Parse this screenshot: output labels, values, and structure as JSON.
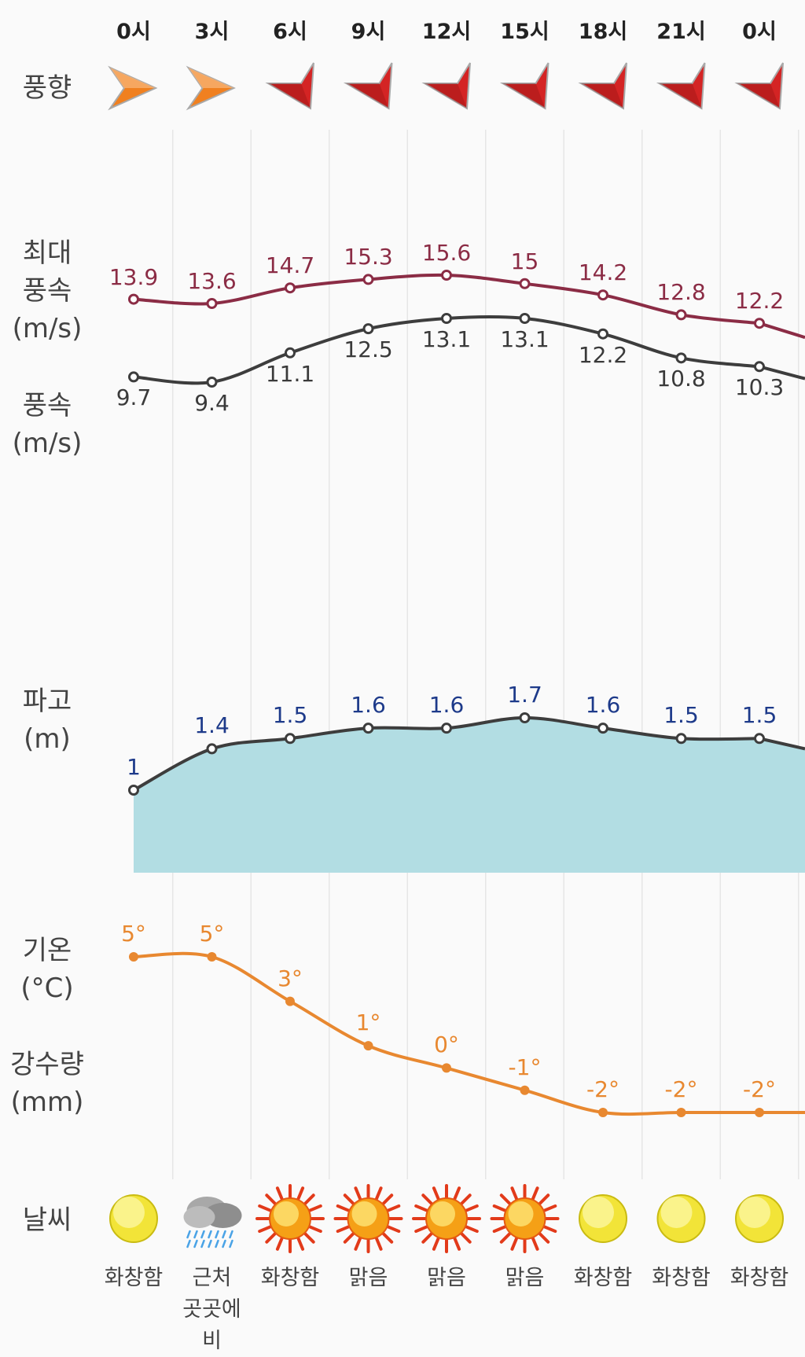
{
  "labels": {
    "wind_dir": "풍향",
    "gust": [
      "최대",
      "풍속",
      "(m/s)"
    ],
    "wind": [
      "풍속",
      "(m/s)"
    ],
    "wave": [
      "파고",
      "(m)"
    ],
    "temp": [
      "기온",
      "(°C)"
    ],
    "rain": [
      "강수량",
      "(mm)"
    ],
    "weather": "날씨"
  },
  "times": [
    "0시",
    "3시",
    "6시",
    "9시",
    "12시",
    "15시",
    "18시",
    "21시",
    "0시"
  ],
  "wind_direction_icons": [
    "arrow-east-icon",
    "arrow-east-icon",
    "arrow-southwest-icon",
    "arrow-southwest-icon",
    "arrow-southwest-icon",
    "arrow-southwest-icon",
    "arrow-southwest-icon",
    "arrow-southwest-icon",
    "arrow-southwest-icon"
  ],
  "colors": {
    "gust": "#8b2c45",
    "wind": "#3d3d3d",
    "wave_fill": "#b2dde3",
    "wave_label": "#1d3a8a",
    "temp": "#e88830",
    "arrow_orange": "#f08020",
    "arrow_red": "#d42424",
    "grid": "#e6e6e6"
  },
  "chart_data": [
    {
      "type": "line",
      "series_key": "gust",
      "categories": [
        "0시",
        "3시",
        "6시",
        "9시",
        "12시",
        "15시",
        "18시",
        "21시",
        "0시"
      ],
      "values": [
        13.9,
        13.6,
        14.7,
        15.3,
        15.6,
        15,
        14.2,
        12.8,
        12.2
      ],
      "value_labels": [
        "13.9",
        "13.6",
        "14.7",
        "15.3",
        "15.6",
        "15",
        "14.2",
        "12.8",
        "12.2"
      ]
    },
    {
      "type": "line",
      "series_key": "wind",
      "categories": [
        "0시",
        "3시",
        "6시",
        "9시",
        "12시",
        "15시",
        "18시",
        "21시",
        "0시"
      ],
      "values": [
        9.7,
        9.4,
        11.1,
        12.5,
        13.1,
        13.1,
        12.2,
        10.8,
        10.3
      ],
      "value_labels": [
        "9.7",
        "9.4",
        "11.1",
        "12.5",
        "13.1",
        "13.1",
        "12.2",
        "10.8",
        "10.3"
      ]
    },
    {
      "type": "area",
      "series_key": "wave",
      "categories": [
        "0시",
        "3시",
        "6시",
        "9시",
        "12시",
        "15시",
        "18시",
        "21시",
        "0시"
      ],
      "values": [
        1,
        1.4,
        1.5,
        1.6,
        1.6,
        1.7,
        1.6,
        1.5,
        1.5
      ],
      "value_labels": [
        "1",
        "1.4",
        "1.5",
        "1.6",
        "1.6",
        "1.7",
        "1.6",
        "1.5",
        "1.5"
      ]
    },
    {
      "type": "line",
      "series_key": "temp",
      "categories": [
        "0시",
        "3시",
        "6시",
        "9시",
        "12시",
        "15시",
        "18시",
        "21시",
        "0시"
      ],
      "values": [
        5,
        5,
        3,
        1,
        0,
        -1,
        -2,
        -2,
        -2
      ],
      "value_labels": [
        "5°",
        "5°",
        "3°",
        "1°",
        "0°",
        "-1°",
        "-2°",
        "-2°",
        "-2°"
      ]
    }
  ],
  "weather": [
    {
      "icon": "moon-icon",
      "text": [
        "화창함"
      ]
    },
    {
      "icon": "rain-cloud-icon",
      "text": [
        "근처",
        "곳곳에",
        "비"
      ]
    },
    {
      "icon": "sun-icon",
      "text": [
        "화창함"
      ]
    },
    {
      "icon": "sun-icon",
      "text": [
        "맑음"
      ]
    },
    {
      "icon": "sun-icon",
      "text": [
        "맑음"
      ]
    },
    {
      "icon": "sun-icon",
      "text": [
        "맑음"
      ]
    },
    {
      "icon": "moon-icon",
      "text": [
        "화창함"
      ]
    },
    {
      "icon": "moon-icon",
      "text": [
        "화창함"
      ]
    },
    {
      "icon": "moon-icon",
      "text": [
        "화창함"
      ]
    }
  ]
}
